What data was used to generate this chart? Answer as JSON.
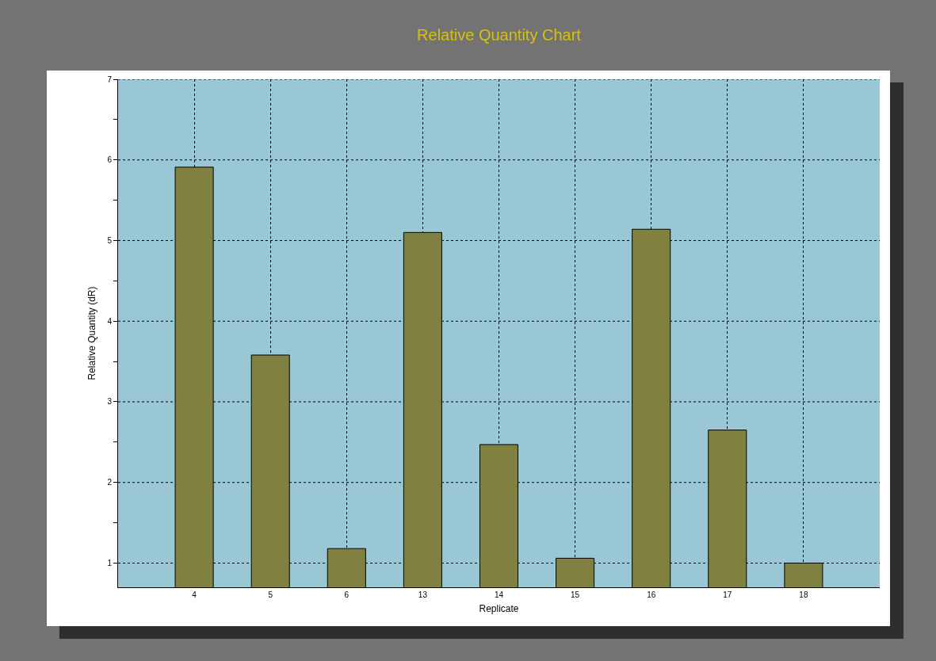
{
  "chart_data": {
    "type": "bar",
    "title": "Relative Quantity Chart",
    "xlabel": "Replicate",
    "ylabel": "Relative Quantity (dR)",
    "categories": [
      "4",
      "5",
      "6",
      "13",
      "14",
      "15",
      "16",
      "17",
      "18"
    ],
    "values": [
      5.91,
      3.58,
      1.18,
      5.1,
      2.47,
      1.06,
      5.14,
      2.65,
      1.0
    ],
    "color": "#808040",
    "ylim": [
      0.7,
      7
    ],
    "yticks": [
      1,
      {
        "value": 1.5,
        "label": null
      },
      2,
      {
        "value": 2.5,
        "label": null
      },
      3,
      {
        "value": 3.5,
        "label": null
      },
      4,
      {
        "value": 4.5,
        "label": null
      },
      5,
      {
        "value": 5.5,
        "label": null
      },
      6,
      {
        "value": 6.5,
        "label": null
      },
      7
    ],
    "grid": true
  }
}
